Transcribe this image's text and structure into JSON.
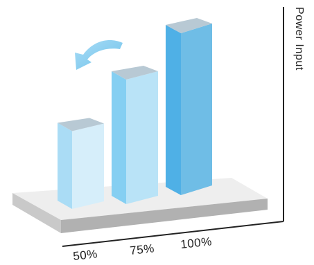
{
  "chart_data": {
    "type": "bar",
    "title": "",
    "xlabel": "",
    "ylabel": "Power Input",
    "categories": [
      "50%",
      "75%",
      "100%"
    ],
    "values": [
      25,
      40,
      52
    ],
    "ylim": [
      0,
      52
    ],
    "grid": false,
    "legend": "none",
    "style": "3d",
    "annotations": [
      {
        "type": "arrow",
        "icon": "curved-arrow-down-left-icon",
        "color": "#6fc2ea"
      }
    ]
  },
  "colors": {
    "bar_front": [
      "#d6eefa",
      "#b9e3f7",
      "#6fbde6"
    ],
    "bar_side": [
      "#aadcf5",
      "#85cff2",
      "#4fb0e6"
    ],
    "bar_top": [
      "#b8c9d4",
      "#b8c9d4",
      "#b8c9d4"
    ],
    "platform_top": "#eeeeee",
    "platform_front": "#c9c9c9",
    "platform_side": "#b1b1b1",
    "axis": "#222222",
    "arrow": "#6fc2ea"
  }
}
